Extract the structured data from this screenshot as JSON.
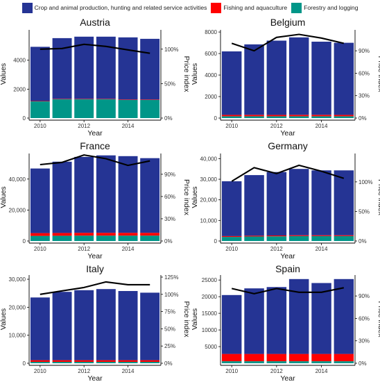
{
  "legend": {
    "items": [
      {
        "label": "Crop and animal production, hunting and related service activities",
        "color": "#253494"
      },
      {
        "label": "Fishing and aquaculture",
        "color": "#ff0000"
      },
      {
        "label": "Forestry and logging",
        "color": "#009688"
      }
    ]
  },
  "axis_labels": {
    "x": "Year",
    "y": "Values",
    "y2": "Price index"
  },
  "chart_data": [
    {
      "type": "bar",
      "title": "Austria",
      "categories": [
        "2010",
        "2011",
        "2012",
        "2013",
        "2014",
        "2015"
      ],
      "x_ticks": [
        "2010",
        "2012",
        "2014"
      ],
      "stack_series": [
        {
          "name": "Forestry and logging",
          "color": "#009688",
          "values": [
            1150,
            1300,
            1300,
            1300,
            1250,
            1250
          ]
        },
        {
          "name": "Fishing and aquaculture",
          "color": "#ff0000",
          "values": [
            30,
            30,
            30,
            30,
            30,
            30
          ]
        },
        {
          "name": "Crop and animal production, hunting and related service activities",
          "color": "#253494",
          "values": [
            3750,
            4200,
            4300,
            4300,
            4300,
            4200
          ]
        }
      ],
      "price_index": [
        100,
        101,
        107,
        104,
        99,
        94
      ],
      "ylim": [
        0,
        6100
      ],
      "y_ticks": [
        0,
        2000,
        4000
      ],
      "y_tick_labels": [
        "0",
        "2000",
        "4000"
      ],
      "y2lim": [
        0,
        128
      ],
      "y2_ticks": [
        0,
        50,
        100
      ],
      "y2_tick_labels": [
        "0%",
        "50%",
        "100%"
      ]
    },
    {
      "type": "bar",
      "title": "Belgium",
      "categories": [
        "2010",
        "2011",
        "2012",
        "2013",
        "2014",
        "2015"
      ],
      "x_ticks": [
        "2010",
        "2012",
        "2014"
      ],
      "stack_series": [
        {
          "name": "Forestry and logging",
          "color": "#009688",
          "values": [
            170,
            170,
            170,
            170,
            170,
            170
          ]
        },
        {
          "name": "Fishing and aquaculture",
          "color": "#ff0000",
          "values": [
            130,
            130,
            130,
            130,
            130,
            130
          ]
        },
        {
          "name": "Crop and animal production, hunting and related service activities",
          "color": "#253494",
          "values": [
            5900,
            6550,
            6900,
            7200,
            6800,
            6700
          ]
        }
      ],
      "price_index": [
        100,
        90,
        108,
        112,
        107,
        100
      ],
      "ylim": [
        0,
        8200
      ],
      "y_ticks": [
        0,
        2000,
        4000,
        6000,
        8000
      ],
      "y_tick_labels": [
        "0",
        "2000",
        "4000",
        "6000",
        "8000"
      ],
      "y2lim": [
        0,
        118
      ],
      "y2_ticks": [
        0,
        30,
        60,
        90
      ],
      "y2_tick_labels": [
        "0%",
        "30%",
        "60%",
        "90%"
      ]
    },
    {
      "type": "bar",
      "title": "France",
      "categories": [
        "2010",
        "2011",
        "2012",
        "2013",
        "2014",
        "2015"
      ],
      "x_ticks": [
        "2010",
        "2012",
        "2014"
      ],
      "stack_series": [
        {
          "name": "Forestry and logging",
          "color": "#009688",
          "values": [
            3300,
            3400,
            3500,
            3500,
            3500,
            3500
          ]
        },
        {
          "name": "Fishing and aquaculture",
          "color": "#ff0000",
          "values": [
            1800,
            1800,
            1800,
            1800,
            1800,
            1800
          ]
        },
        {
          "name": "Crop and animal production, hunting and related service activities",
          "color": "#253494",
          "values": [
            41700,
            46000,
            49000,
            50000,
            49500,
            48200
          ]
        }
      ],
      "price_index": [
        103,
        106,
        116,
        111,
        102,
        108
      ],
      "ylim": [
        0,
        56500
      ],
      "y_ticks": [
        0,
        20000,
        40000
      ],
      "y_tick_labels": [
        "0",
        "20,000",
        "40,000"
      ],
      "y2lim": [
        0,
        118
      ],
      "y2_ticks": [
        0,
        30,
        60,
        90
      ],
      "y2_tick_labels": [
        "0%",
        "30%",
        "60%",
        "90%"
      ]
    },
    {
      "type": "bar",
      "title": "Germany",
      "categories": [
        "2010",
        "2011",
        "2012",
        "2013",
        "2014",
        "2015"
      ],
      "x_ticks": [
        "2010",
        "2012",
        "2014"
      ],
      "stack_series": [
        {
          "name": "Forestry and logging",
          "color": "#009688",
          "values": [
            2000,
            2200,
            2300,
            2400,
            2400,
            2400
          ]
        },
        {
          "name": "Fishing and aquaculture",
          "color": "#ff0000",
          "values": [
            400,
            400,
            400,
            400,
            400,
            400
          ]
        },
        {
          "name": "Crop and animal production, hunting and related service activities",
          "color": "#253494",
          "values": [
            26600,
            29400,
            30800,
            32200,
            31500,
            31500
          ]
        }
      ],
      "price_index": [
        101,
        124,
        114,
        128,
        118,
        106
      ],
      "ylim": [
        0,
        42500
      ],
      "y_ticks": [
        0,
        10000,
        20000,
        30000,
        40000
      ],
      "y_tick_labels": [
        "0",
        "10,000",
        "20,000",
        "30,000",
        "40,000"
      ],
      "y2lim": [
        0,
        148
      ],
      "y2_ticks": [
        0,
        50,
        100
      ],
      "y2_tick_labels": [
        "0%",
        "50%",
        "100%"
      ]
    },
    {
      "type": "bar",
      "title": "Italy",
      "categories": [
        "2010",
        "2011",
        "2012",
        "2013",
        "2014",
        "2015"
      ],
      "x_ticks": [
        "2010",
        "2012",
        "2014"
      ],
      "stack_series": [
        {
          "name": "Forestry and logging",
          "color": "#009688",
          "values": [
            500,
            500,
            500,
            500,
            500,
            500
          ]
        },
        {
          "name": "Fishing and aquaculture",
          "color": "#ff0000",
          "values": [
            600,
            600,
            600,
            600,
            600,
            600
          ]
        },
        {
          "name": "Crop and animal production, hunting and related service activities",
          "color": "#253494",
          "values": [
            22400,
            24400,
            25000,
            25400,
            24700,
            24100
          ]
        }
      ],
      "price_index": [
        100,
        105,
        110,
        118,
        114,
        114
      ],
      "ylim": [
        0,
        31500
      ],
      "y_ticks": [
        0,
        10000,
        20000,
        30000
      ],
      "y_tick_labels": [
        "0",
        "10,000",
        "20,000",
        "30,000"
      ],
      "y2lim": [
        0,
        128
      ],
      "y2_ticks": [
        0,
        25,
        50,
        75,
        100,
        125
      ],
      "y2_tick_labels": [
        "0%",
        "25%",
        "50%",
        "75%",
        "100%",
        "125%"
      ]
    },
    {
      "type": "bar",
      "title": "Spain",
      "categories": [
        "2010",
        "2011",
        "2012",
        "2013",
        "2014",
        "2015"
      ],
      "x_ticks": [
        "2010",
        "2012",
        "2014"
      ],
      "stack_series": [
        {
          "name": "Forestry and logging",
          "color": "#009688",
          "values": [
            600,
            600,
            600,
            600,
            600,
            600
          ]
        },
        {
          "name": "Fishing and aquaculture",
          "color": "#ff0000",
          "values": [
            2200,
            2200,
            2200,
            2200,
            2200,
            2200
          ]
        },
        {
          "name": "Crop and animal production, hunting and related service activities",
          "color": "#253494",
          "values": [
            17700,
            19700,
            20100,
            22500,
            21300,
            22500
          ]
        }
      ],
      "price_index": [
        100,
        93,
        100,
        95,
        95,
        101
      ],
      "ylim": [
        0,
        26500
      ],
      "y_ticks": [
        5000,
        10000,
        15000,
        20000,
        25000
      ],
      "y_tick_labels": [
        "5000",
        "10000",
        "15000",
        "20000",
        "25000"
      ],
      "y2lim": [
        0,
        118
      ],
      "y2_ticks": [
        0,
        30,
        60,
        90
      ],
      "y2_tick_labels": [
        "0%",
        "30%",
        "60%",
        "90%"
      ]
    }
  ]
}
